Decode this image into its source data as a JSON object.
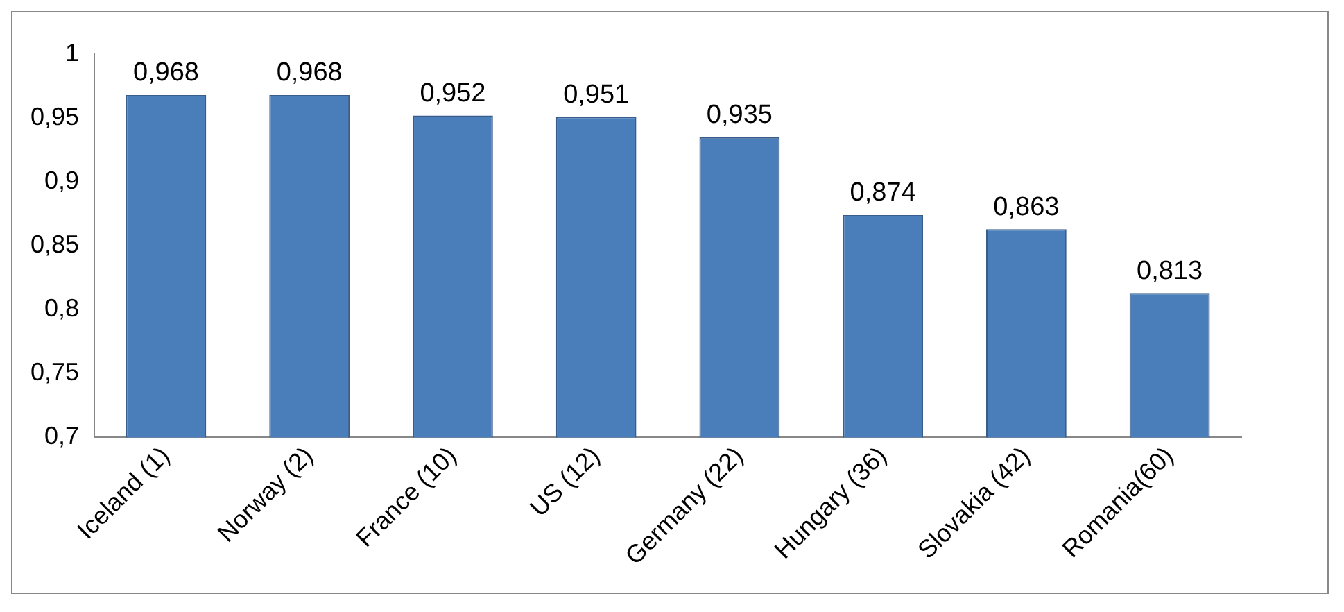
{
  "chart_data": {
    "type": "bar",
    "categories": [
      "Iceland (1)",
      "Norway (2)",
      "France (10)",
      "US (12)",
      "Germany (22)",
      "Hungary (36)",
      "Slovakia (42)",
      "Romania(60)"
    ],
    "values": [
      0.968,
      0.968,
      0.952,
      0.951,
      0.935,
      0.874,
      0.863,
      0.813
    ],
    "value_labels": [
      "0,968",
      "0,968",
      "0,952",
      "0,951",
      "0,935",
      "0,874",
      "0,863",
      "0,813"
    ],
    "color": "#4a7ebb",
    "ylim": [
      0.7,
      1
    ],
    "yticks": [
      {
        "value": 0.7,
        "label": "0,7"
      },
      {
        "value": 0.75,
        "label": "0,75"
      },
      {
        "value": 0.8,
        "label": "0,8"
      },
      {
        "value": 0.85,
        "label": "0,85"
      },
      {
        "value": 0.9,
        "label": "0,9"
      },
      {
        "value": 0.95,
        "label": "0,95"
      },
      {
        "value": 1,
        "label": "1"
      }
    ],
    "grid": false,
    "legend": false
  }
}
